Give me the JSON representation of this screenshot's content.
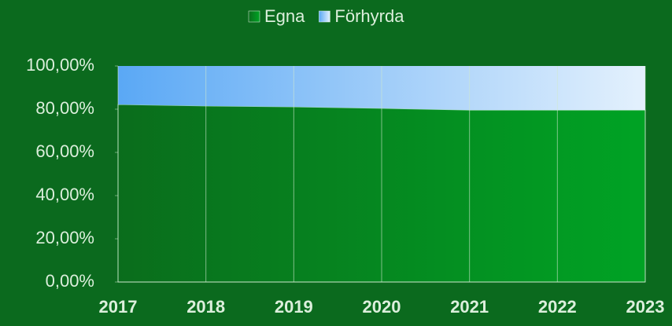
{
  "chart_data": {
    "type": "area",
    "stacked": true,
    "categories": [
      "2017",
      "2018",
      "2019",
      "2020",
      "2021",
      "2022",
      "2023"
    ],
    "series": [
      {
        "name": "Egna",
        "color": "#0b8a22",
        "values": [
          82.2,
          81.5,
          81.1,
          80.4,
          79.6,
          79.6,
          79.6
        ]
      },
      {
        "name": "Förhyrda",
        "color": "#5aa8f5",
        "values": [
          17.8,
          18.5,
          18.9,
          19.6,
          20.4,
          20.4,
          20.4
        ]
      }
    ],
    "ylim": [
      0,
      100
    ],
    "yticks": [
      {
        "value": 0,
        "label": "0,00%"
      },
      {
        "value": 20,
        "label": "20,00%"
      },
      {
        "value": 40,
        "label": "40,00%"
      },
      {
        "value": 60,
        "label": "60,00%"
      },
      {
        "value": 80,
        "label": "80,00%"
      },
      {
        "value": 100,
        "label": "100,00%"
      }
    ],
    "legend": "top",
    "grid": true
  }
}
